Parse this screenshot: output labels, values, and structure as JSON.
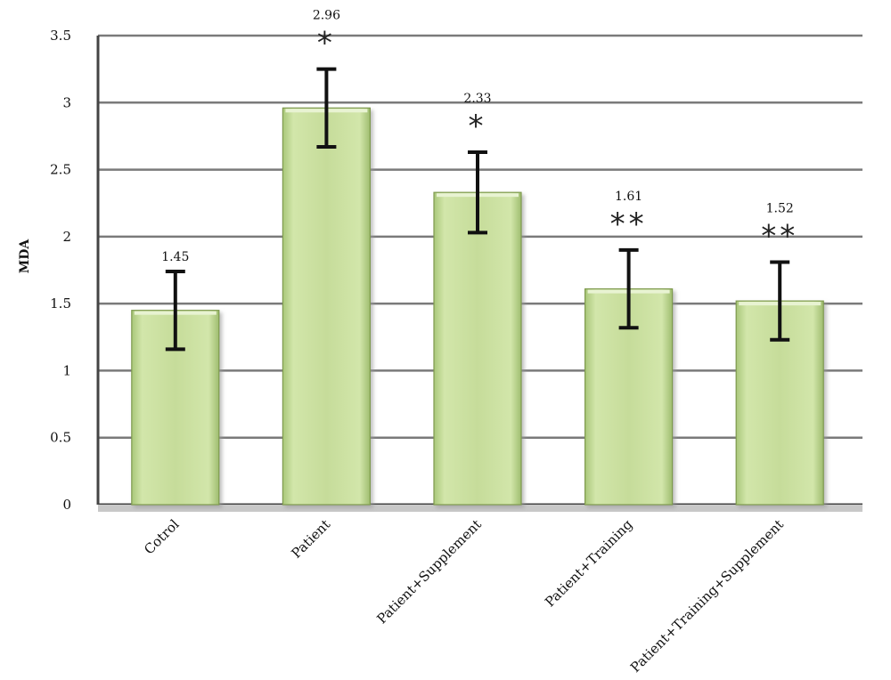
{
  "chart_data": {
    "type": "bar",
    "title": "",
    "xlabel": "",
    "ylabel": "MDA",
    "ylim": [
      0,
      3.5
    ],
    "yticks": [
      "0",
      "0.5",
      "1",
      "1.5",
      "2",
      "2.5",
      "3",
      "3.5"
    ],
    "grid": true,
    "categories": [
      "Cotrol",
      "Patient",
      "Patient+Supplement",
      "Patient+Training",
      "Patient+Training+Supplement"
    ],
    "values": [
      1.45,
      2.96,
      2.33,
      1.61,
      1.52
    ],
    "value_labels": [
      "1.45",
      "2.96",
      "2.33",
      "1.61",
      "1.52"
    ],
    "error": [
      0.29,
      0.29,
      0.3,
      0.29,
      0.29
    ],
    "significance": [
      "",
      "*",
      "*",
      "**",
      "**"
    ],
    "colors": {
      "bar_fill": "#c3da96",
      "bar_edge": "#7e9a4e",
      "grid": "#7a7a7a",
      "error_bar": "#111111"
    }
  }
}
